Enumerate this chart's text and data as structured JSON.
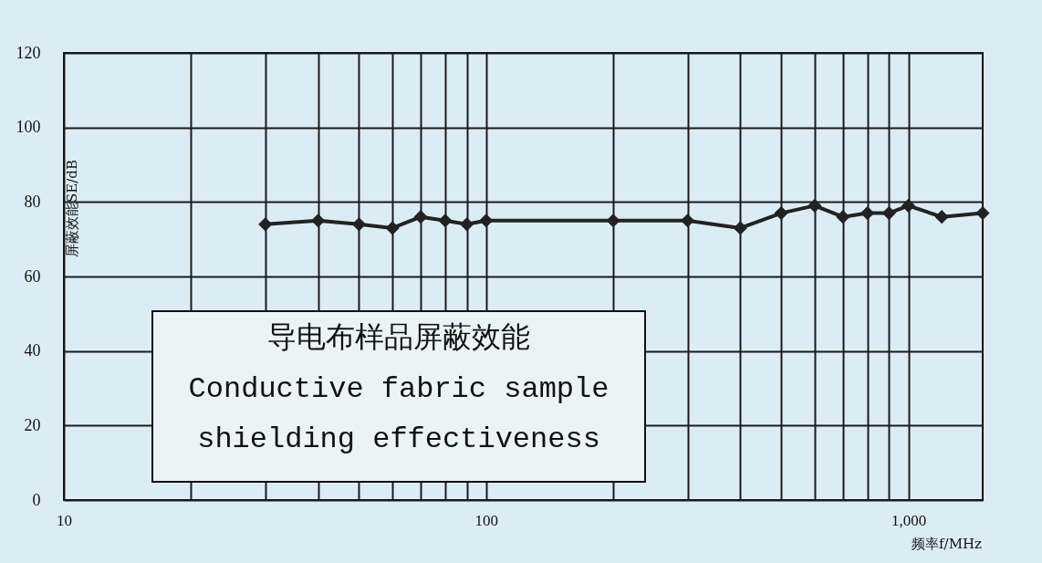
{
  "chart_data": {
    "type": "line",
    "title": "导电布样品屏蔽效能",
    "subtitle": "Conductive fabric sample shielding effectiveness",
    "xlabel": "频率f/MHz",
    "ylabel": "屏蔽效能SE/dB",
    "x": [
      30,
      40,
      50,
      60,
      70,
      80,
      90,
      100,
      200,
      300,
      400,
      500,
      600,
      700,
      800,
      900,
      1000,
      1200,
      1500
    ],
    "series": [
      {
        "color": "#222222",
        "values": [
          74,
          75,
          74,
          73,
          76,
          75,
          74,
          75,
          75,
          75,
          73,
          77,
          79,
          76,
          77,
          77,
          79,
          76,
          77
        ]
      }
    ],
    "log": "x",
    "xlim": [
      10,
      1500
    ],
    "ylim": [
      0,
      120
    ],
    "xticks": [
      10,
      {
        "value": 20,
        "label": null
      },
      {
        "value": 30,
        "label": null
      },
      {
        "value": 40,
        "label": null
      },
      {
        "value": 50,
        "label": null
      },
      {
        "value": 60,
        "label": null
      },
      {
        "value": 70,
        "label": null
      },
      {
        "value": 80,
        "label": null
      },
      {
        "value": 90,
        "label": null
      },
      100,
      {
        "value": 200,
        "label": null
      },
      {
        "value": 300,
        "label": null
      },
      {
        "value": 400,
        "label": null
      },
      {
        "value": 500,
        "label": null
      },
      {
        "value": 600,
        "label": null
      },
      {
        "value": 700,
        "label": null
      },
      {
        "value": 800,
        "label": null
      },
      {
        "value": 900,
        "label": null
      },
      {
        "value": 1000,
        "label": "1,000"
      }
    ],
    "yticks": [
      0,
      20,
      40,
      60,
      80,
      100,
      120
    ],
    "grid": true,
    "marker": "diamond",
    "line_style": "solid"
  }
}
